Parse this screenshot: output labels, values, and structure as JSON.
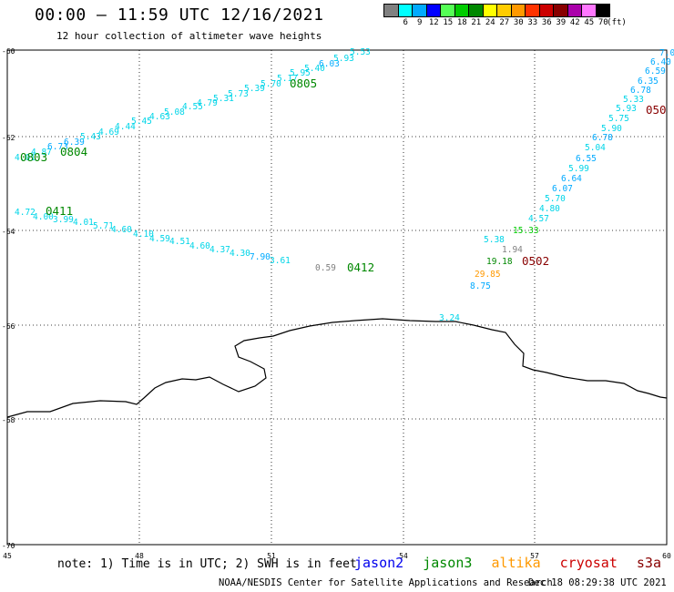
{
  "header": {
    "title": "00:00 – 11:59 UTC 12/16/2021",
    "subtitle": "12 hour collection of altimeter wave heights"
  },
  "color_scale": {
    "unit_label": "(ft)",
    "bins": [
      {
        "label": "3",
        "color": "#808080"
      },
      {
        "label": "6",
        "color": "#00ffff"
      },
      {
        "label": "9",
        "color": "#00aaff"
      },
      {
        "label": "12",
        "color": "#0000ff"
      },
      {
        "label": "15",
        "color": "#55ff55"
      },
      {
        "label": "18",
        "color": "#00cc00"
      },
      {
        "label": "21",
        "color": "#008800"
      },
      {
        "label": "24",
        "color": "#ffff00"
      },
      {
        "label": "27",
        "color": "#ffcc00"
      },
      {
        "label": "30",
        "color": "#ff9900"
      },
      {
        "label": "33",
        "color": "#ff3300"
      },
      {
        "label": "36",
        "color": "#cc0000"
      },
      {
        "label": "39",
        "color": "#880000"
      },
      {
        "label": "42",
        "color": "#aa00aa"
      },
      {
        "label": "45",
        "color": "#ff77ff"
      },
      {
        "label": "70",
        "color": "#000000"
      }
    ]
  },
  "axes": {
    "lat_labels": [
      "-60",
      "-62",
      "-64",
      "-66",
      "-68",
      "-70"
    ],
    "lon_labels": [
      "45",
      "48",
      "51",
      "54",
      "57",
      "60"
    ]
  },
  "tracks": [
    {
      "id": "0805",
      "id_color": "#008800",
      "values": [
        "4.01",
        "4.87",
        "6.73",
        "6.39",
        "5.43",
        "4.69",
        "4.44",
        "5.45",
        "4.63",
        "5.08",
        "4.55",
        "4.79",
        "5.31",
        "5.73",
        "5.39",
        "5.70",
        "5.17",
        "5.95",
        "5.40",
        "6.03",
        "5.93",
        "5.53"
      ]
    },
    {
      "id": "0804",
      "id_color": "#008800",
      "values": []
    },
    {
      "id": "0803",
      "id_color": "#008800",
      "values": []
    },
    {
      "id": "0411",
      "id_color": "#008800",
      "values": [
        "4.72",
        "4.00",
        "3.99",
        "4.01",
        "5.71",
        "4.60",
        "4.10",
        "4.59",
        "4.51",
        "4.60",
        "4.37",
        "4.30",
        "7.90",
        "3.61"
      ]
    },
    {
      "id": "0412",
      "id_color": "#008800",
      "values": [
        "0.59"
      ]
    },
    {
      "id": "0502",
      "id_color": "#880000",
      "values": [
        "1.94",
        "19.18",
        "29.85",
        "8.75",
        "5.38",
        "15.33",
        "4.57",
        "4.80",
        "5.70",
        "6.07",
        "6.64",
        "5.99",
        "6.55",
        "5.04",
        "6.78",
        "5.90",
        "5.75",
        "5.93",
        "5.33",
        "6.78",
        "6.35",
        "6.59",
        "6.40",
        "7.0",
        "3.24"
      ]
    },
    {
      "id": "050",
      "id_color": "#880000",
      "values": []
    }
  ],
  "footer": {
    "note": "note: 1) Time is in UTC; 2) SWH is in feet",
    "satellites": [
      {
        "name": "jason2",
        "color": "#0000ee"
      },
      {
        "name": "jason3",
        "color": "#008800"
      },
      {
        "name": "altika",
        "color": "#ff9900"
      },
      {
        "name": "cryosat",
        "color": "#cc0000"
      },
      {
        "name": "s3a",
        "color": "#880000"
      }
    ],
    "credit": "NOAA/NESDIS Center for Satellite Applications and Research",
    "timestamp": "Dec 18 08:29:38 UTC 2021"
  }
}
